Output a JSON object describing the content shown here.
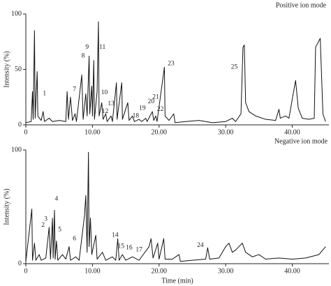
{
  "chart_data": [
    {
      "type": "line",
      "title": "Positive ion mode",
      "ylabel": "Intensity (%)",
      "color": "#111111",
      "xlim": [
        0,
        45.5
      ],
      "ylim": [
        0,
        100
      ],
      "xticks": [
        0,
        {
          "value": 10,
          "label": "10.00"
        },
        {
          "value": 20,
          "label": "20.00"
        },
        {
          "value": 30,
          "label": "30.00"
        },
        {
          "value": 40,
          "label": "40.00"
        }
      ],
      "yticks": [
        0,
        50,
        100
      ],
      "x": [
        0,
        0.8,
        1.0,
        1.1,
        1.3,
        1.4,
        1.7,
        1.8,
        2.3,
        2.6,
        2.8,
        3.5,
        4,
        5,
        6,
        6.2,
        6.4,
        6.7,
        7,
        7.4,
        7.6,
        8.4,
        8.6,
        9.0,
        9.2,
        9.5,
        9.6,
        9.9,
        10.0,
        10.2,
        10.3,
        10.7,
        10.9,
        11.0,
        11.4,
        11.6,
        12.0,
        12.2,
        12.8,
        13,
        13.6,
        13.7,
        14.4,
        14.5,
        15.3,
        15.5,
        16,
        16.3,
        17,
        17.4,
        18,
        18.2,
        19.0,
        19.2,
        19.5,
        19.7,
        20.8,
        20.9,
        21.5,
        22.2,
        22.4,
        24,
        26,
        28,
        30,
        31,
        31.5,
        32.3,
        32.6,
        32.8,
        33.0,
        33.5,
        34.5,
        36,
        37.5,
        38.0,
        38.2,
        39,
        39.5,
        40.2,
        40.5,
        40.9,
        41.5,
        42.5,
        43.3,
        43.5,
        44.2,
        44.6,
        45
      ],
      "values": [
        2,
        3,
        30,
        5,
        85,
        6,
        48,
        8,
        4,
        12,
        3,
        6,
        3,
        4,
        3,
        30,
        5,
        25,
        4,
        10,
        3,
        45,
        5,
        28,
        8,
        62,
        10,
        35,
        8,
        58,
        5,
        30,
        93,
        8,
        20,
        5,
        10,
        3,
        8,
        3,
        38,
        5,
        38,
        5,
        20,
        4,
        8,
        3,
        5,
        3,
        6,
        3,
        12,
        4,
        8,
        3,
        52,
        8,
        4,
        10,
        2,
        3,
        4,
        2,
        3,
        6,
        3,
        10,
        70,
        72,
        20,
        12,
        8,
        5,
        4,
        14,
        6,
        8,
        6,
        30,
        40,
        15,
        6,
        5,
        6,
        70,
        78,
        10,
        3
      ],
      "annotations": [
        {
          "text": "1",
          "x": 2.8,
          "y": 28
        },
        {
          "text": "7",
          "x": 7.3,
          "y": 32
        },
        {
          "text": "8",
          "x": 8.6,
          "y": 62
        },
        {
          "text": "9",
          "x": 9.2,
          "y": 70
        },
        {
          "text": "10",
          "x": 11.8,
          "y": 29
        },
        {
          "text": "11",
          "x": 11.5,
          "y": 70
        },
        {
          "text": "12",
          "x": 11.9,
          "y": 12
        },
        {
          "text": "13",
          "x": 12.8,
          "y": 19
        },
        {
          "text": "18",
          "x": 16.5,
          "y": 8
        },
        {
          "text": "19",
          "x": 17.5,
          "y": 15
        },
        {
          "text": "20",
          "x": 18.8,
          "y": 21
        },
        {
          "text": "21",
          "x": 19.5,
          "y": 25
        },
        {
          "text": "22",
          "x": 20.2,
          "y": 14
        },
        {
          "text": "23",
          "x": 21.8,
          "y": 55
        },
        {
          "text": "25",
          "x": 31.3,
          "y": 52
        }
      ]
    },
    {
      "type": "line",
      "title": "Negative ion mode",
      "ylabel": "Intensity (%)",
      "xlabel": "Time (min)",
      "color": "#111111",
      "xlim": [
        0,
        45.5
      ],
      "ylim": [
        0,
        100
      ],
      "xticks": [
        0,
        {
          "value": 10,
          "label": "10.00"
        },
        {
          "value": 20,
          "label": "20.00"
        },
        {
          "value": 30,
          "label": "30.00"
        },
        {
          "value": 40,
          "label": "40.00"
        }
      ],
      "yticks": [
        0,
        100
      ],
      "x": [
        0,
        0.9,
        1.0,
        1.3,
        1.5,
        2,
        2.3,
        3,
        3.5,
        3.7,
        4.0,
        4.1,
        4.3,
        4.4,
        4.6,
        4.8,
        5.5,
        6,
        6.5,
        6.7,
        7.5,
        8,
        8.8,
        9.0,
        9.2,
        9.4,
        9.5,
        9.7,
        9.9,
        10.5,
        10.7,
        11.5,
        12,
        13,
        13.5,
        13.8,
        14,
        14.5,
        15,
        16,
        17,
        18.5,
        18.8,
        19.1,
        19.8,
        20,
        20.7,
        20.9,
        22,
        23,
        23.2,
        25,
        27,
        27.3,
        27.6,
        29,
        30,
        30.5,
        31,
        31.5,
        32.5,
        33,
        34,
        35,
        36,
        38,
        40,
        42,
        44,
        45
      ],
      "values": [
        2,
        48,
        3,
        18,
        3,
        8,
        3,
        5,
        32,
        4,
        40,
        5,
        47,
        4,
        20,
        3,
        8,
        4,
        15,
        3,
        6,
        3,
        42,
        60,
        10,
        98,
        15,
        40,
        8,
        25,
        4,
        10,
        3,
        6,
        3,
        22,
        3,
        8,
        3,
        6,
        3,
        15,
        22,
        5,
        18,
        4,
        22,
        4,
        4,
        8,
        2,
        3,
        4,
        14,
        4,
        5,
        15,
        18,
        10,
        12,
        18,
        10,
        6,
        8,
        4,
        5,
        4,
        5,
        8,
        15
      ],
      "annotations": [
        {
          "text": "2",
          "x": 2.6,
          "y": 34
        },
        {
          "text": "3",
          "x": 3.0,
          "y": 39
        },
        {
          "text": "4",
          "x": 4.6,
          "y": 57
        },
        {
          "text": "5",
          "x": 5.1,
          "y": 30
        },
        {
          "text": "6",
          "x": 7.3,
          "y": 22
        },
        {
          "text": "14",
          "x": 13.4,
          "y": 25
        },
        {
          "text": "15",
          "x": 14.3,
          "y": 15
        },
        {
          "text": "16",
          "x": 15.5,
          "y": 14
        },
        {
          "text": "17",
          "x": 17.0,
          "y": 12
        },
        {
          "text": "24",
          "x": 26.2,
          "y": 16
        }
      ]
    }
  ]
}
